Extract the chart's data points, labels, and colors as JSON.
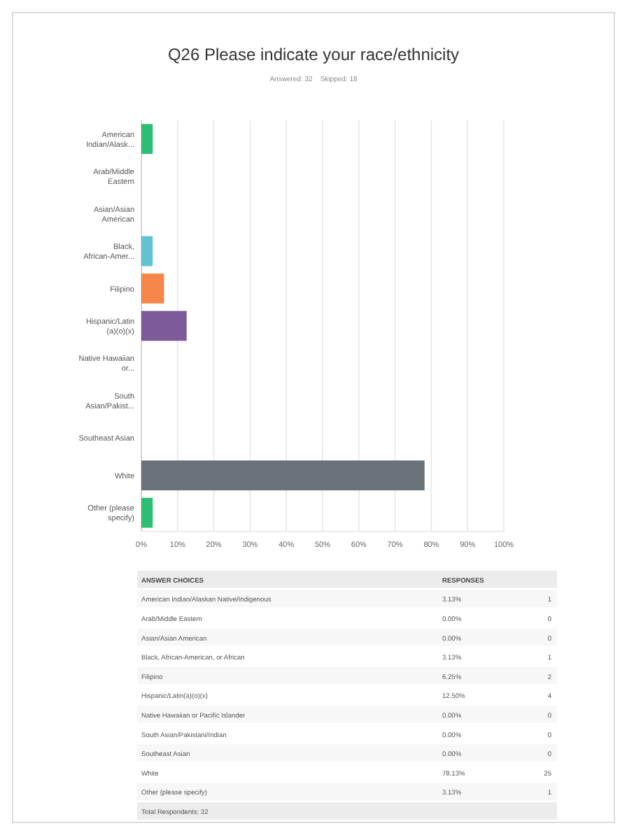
{
  "chart_data": {
    "type": "bar",
    "orientation": "horizontal",
    "title": "Q26 Please indicate your race/ethnicity",
    "subtitle": "Answered: 32    Skipped: 18",
    "categories": [
      "American Indian/Alask...",
      "Arab/Middle Eastern",
      "Asian/Asian American",
      "Black, African-Amer...",
      "Filipino",
      "Hispanic/Latin(a)(o)(x)",
      "Native Hawaiian or...",
      "South Asian/Pakist...",
      "Southeast Asian",
      "White",
      "Other (please specify)"
    ],
    "values": [
      3.13,
      0,
      0,
      3.13,
      6.25,
      12.5,
      0,
      0,
      0,
      78.13,
      3.13
    ],
    "colors": [
      "#2dbe74",
      "#2dbe74",
      "#2dbe74",
      "#60c3cf",
      "#f6864a",
      "#7d5a9a",
      "#7d5a9a",
      "#7d5a9a",
      "#7d5a9a",
      "#6c7279",
      "#2dbe74"
    ],
    "xlim": [
      0,
      100
    ],
    "xticks": [
      {
        "value": 0,
        "label": "0%"
      },
      {
        "value": 10,
        "label": "10%"
      },
      {
        "value": 20,
        "label": "20%"
      },
      {
        "value": 30,
        "label": "30%"
      },
      {
        "value": 40,
        "label": "40%"
      },
      {
        "value": 50,
        "label": "50%"
      },
      {
        "value": 60,
        "label": "60%"
      },
      {
        "value": 70,
        "label": "70%"
      },
      {
        "value": 80,
        "label": "80%"
      },
      {
        "value": 90,
        "label": "90%"
      },
      {
        "value": 100,
        "label": "100%"
      }
    ],
    "grid": "x",
    "annotations": [
      "ANSWER CHOICES",
      "RESPONSES",
      "American Indian/Alaskan Native/Indigenous",
      "Arab/Middle Eastern",
      "Asian/Asian American",
      "Black, African-American, or African",
      "Filipino",
      "Hispanic/Latin(a)(o)(x)",
      "Native Hawaiian or Pacific Islander",
      "South Asian/Pakistani/Indian",
      "Southeast Asian",
      "White",
      "Other (please specify)",
      "3.13%",
      "0.00%",
      "0.00%",
      "3.13%",
      "6.25%",
      "12.50%",
      "0.00%",
      "0.00%",
      "0.00%",
      "78.13%",
      "3.13%",
      "1",
      "0",
      "0",
      "1",
      "2",
      "4",
      "0",
      "0",
      "0",
      "25",
      "1",
      "Total Respondents: 32"
    ]
  }
}
